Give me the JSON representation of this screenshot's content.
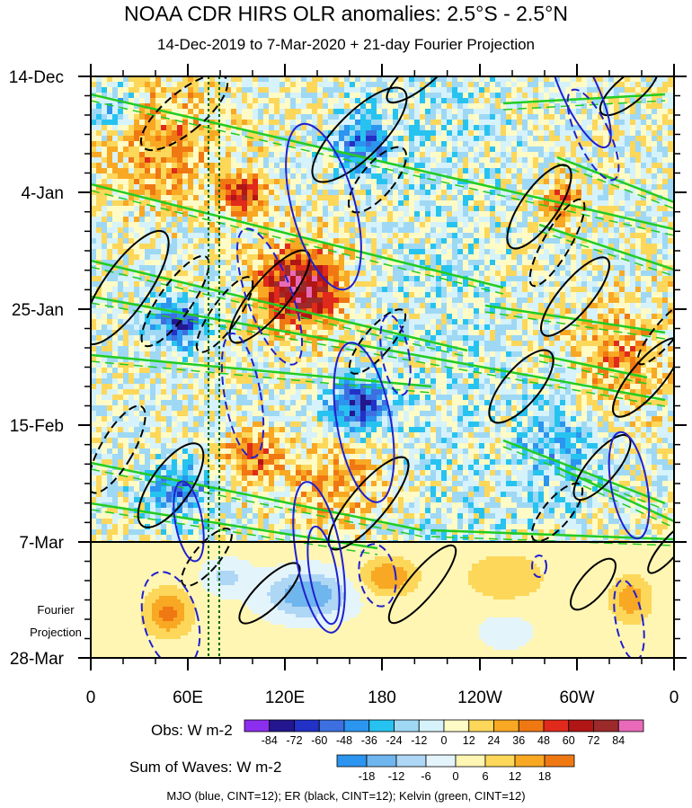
{
  "title": "NOAA CDR HIRS OLR anomalies: 2.5°S - 2.5°N",
  "subtitle": "14-Dec-2019 to 7-Mar-2020 + 21-day Fourier Projection",
  "projection_label_1": "Fourier",
  "projection_label_2": "Projection",
  "obs_legend_title": "Obs: W m-2",
  "waves_legend_title": "Sum of Waves: W m-2",
  "footer": "MJO (blue, CINT=12); ER (black, CINT=12); Kelvin (green, CINT=12)",
  "chart_data": {
    "type": "heatmap",
    "title": "NOAA CDR HIRS OLR anomalies: 2.5°S - 2.5°N",
    "subtitle": "14-Dec-2019 to 7-Mar-2020 + 21-day Fourier Projection",
    "x_tick_labels": [
      "0",
      "60E",
      "120E",
      "180",
      "120W",
      "60W",
      "0"
    ],
    "y_tick_labels": [
      "14-Dec",
      "4-Jan",
      "25-Jan",
      "15-Feb",
      "7-Mar",
      "28-Mar"
    ],
    "obs_levels": [
      -84,
      -72,
      -60,
      -48,
      -36,
      -24,
      -12,
      0,
      12,
      24,
      36,
      48,
      60,
      72,
      84
    ],
    "obs_colors": [
      "#8c2eee",
      "#23178f",
      "#2231c6",
      "#3d6fe0",
      "#2b95ef",
      "#27c3f0",
      "#9ed8f5",
      "#d6f2fb",
      "#fffbc6",
      "#fcd75a",
      "#f8a823",
      "#f07813",
      "#e02a1b",
      "#b01616",
      "#9c2a2a",
      "#e86ab8"
    ],
    "wave_levels": [
      -18,
      -12,
      -6,
      0,
      6,
      12,
      18
    ],
    "wave_colors": [
      "#2b95ef",
      "#6fb5ee",
      "#aed6f5",
      "#e4f4fb",
      "#fff6b3",
      "#fcd75a",
      "#f8a823",
      "#f07813"
    ],
    "contours": [
      {
        "name": "MJO",
        "color": "blue",
        "cint": 12
      },
      {
        "name": "ER",
        "color": "black",
        "cint": 12
      },
      {
        "name": "Kelvin",
        "color": "green",
        "cint": 12
      }
    ]
  }
}
